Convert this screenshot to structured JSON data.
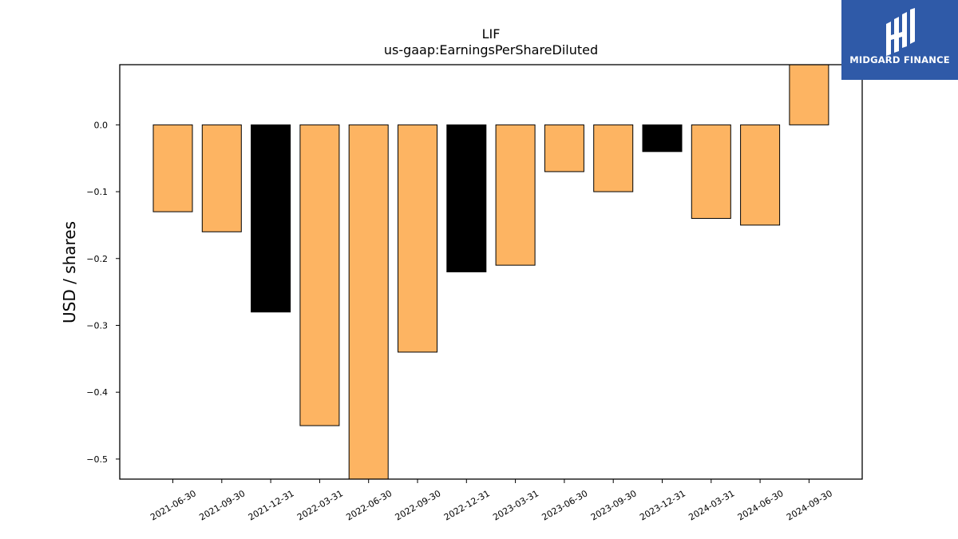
{
  "chart_data": {
    "type": "bar",
    "title": "LIF",
    "subtitle": "us-gaap:EarningsPerShareDiluted",
    "xlabel": "",
    "ylabel": "USD / shares",
    "categories": [
      "2021-06-30",
      "2021-09-30",
      "2021-12-31",
      "2022-03-31",
      "2022-06-30",
      "2022-09-30",
      "2022-12-31",
      "2023-03-31",
      "2023-06-30",
      "2023-09-30",
      "2023-12-31",
      "2024-03-31",
      "2024-06-30",
      "2024-09-30"
    ],
    "values": [
      -0.13,
      -0.16,
      -0.28,
      -0.45,
      -0.53,
      -0.34,
      -0.22,
      -0.21,
      -0.07,
      -0.1,
      -0.04,
      -0.14,
      -0.15,
      0.09
    ],
    "bar_colors": [
      "#fdb462",
      "#fdb462",
      "#000000",
      "#fdb462",
      "#fdb462",
      "#fdb462",
      "#000000",
      "#fdb462",
      "#fdb462",
      "#fdb462",
      "#000000",
      "#fdb462",
      "#fdb462",
      "#fdb462"
    ],
    "yticks": [
      0.0,
      -0.1,
      -0.2,
      -0.3,
      -0.4,
      -0.5
    ],
    "ytick_labels": [
      "0.0",
      "−0.1",
      "−0.2",
      "−0.3",
      "−0.4",
      "−0.5"
    ],
    "ylim": [
      -0.53,
      0.09
    ],
    "grid": false,
    "legend": "none"
  },
  "logo": {
    "text": "MIDGARD FINANCE",
    "color": "#2f5aa8"
  }
}
